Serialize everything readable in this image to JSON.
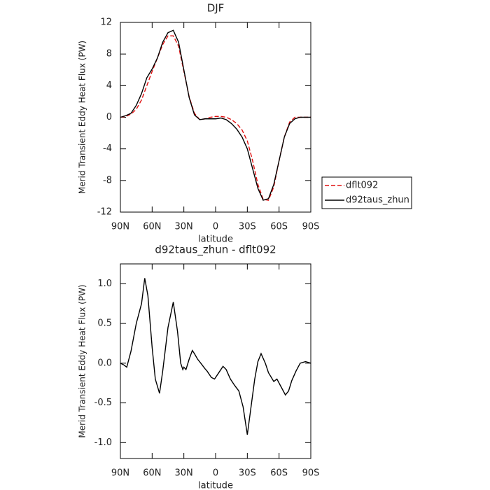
{
  "chart_data": [
    {
      "type": "line",
      "title": "DJF",
      "xlabel": "latitude",
      "ylabel": "Merid Transient Eddy Heat Flux (PW)",
      "xlim": [
        90,
        -90
      ],
      "xticks": [
        {
          "value": 90,
          "label": "90N"
        },
        {
          "value": 60,
          "label": "60N"
        },
        {
          "value": 30,
          "label": "30N"
        },
        0,
        {
          "value": -30,
          "label": "30S"
        },
        {
          "value": -60,
          "label": "60S"
        },
        {
          "value": -90,
          "label": "90S"
        }
      ],
      "ylim": [
        -12,
        12
      ],
      "yticks": [
        12,
        8,
        4,
        0,
        -4,
        -8,
        -12
      ],
      "legend": "right",
      "x": [
        90,
        85,
        80,
        75,
        70,
        65,
        60,
        55,
        50,
        45,
        40,
        35,
        30,
        25,
        20,
        15,
        10,
        5,
        0,
        -5,
        -10,
        -15,
        -20,
        -25,
        -30,
        -35,
        -40,
        -45,
        -50,
        -55,
        -60,
        -65,
        -70,
        -75,
        -80,
        -85,
        -90
      ],
      "series": [
        {
          "name": "dflt092",
          "color": "#e01010",
          "dashed": true,
          "values": [
            0,
            0.1,
            0.4,
            1.0,
            2.2,
            4,
            5.8,
            7.5,
            9.2,
            10.3,
            10.3,
            9.0,
            5.8,
            2.6,
            0.5,
            -0.3,
            -0.2,
            0,
            0.1,
            0.1,
            0,
            -0.3,
            -0.8,
            -1.6,
            -3,
            -5.5,
            -8.5,
            -10.4,
            -10.5,
            -8.8,
            -5.5,
            -2.5,
            -0.6,
            0,
            0,
            0,
            0
          ]
        },
        {
          "name": "d92taus_zhun",
          "color": "#000000",
          "dashed": false,
          "values": [
            0,
            0.2,
            0.5,
            1.5,
            3,
            5,
            6.1,
            7.5,
            9.5,
            10.7,
            11,
            9.5,
            6,
            2.5,
            0.3,
            -0.3,
            -0.2,
            -0.2,
            -0.2,
            -0.1,
            -0.3,
            -0.8,
            -1.5,
            -2.5,
            -4,
            -6.5,
            -9,
            -10.5,
            -10.3,
            -8.5,
            -5.5,
            -2.5,
            -0.8,
            -0.2,
            0,
            0,
            0
          ]
        }
      ]
    },
    {
      "type": "line",
      "title": "d92taus_zhun - dflt092",
      "xlabel": "latitude",
      "ylabel": "Merid Transient Eddy Heat Flux (PW)",
      "xlim": [
        90,
        -90
      ],
      "xticks": [
        {
          "value": 90,
          "label": "90N"
        },
        {
          "value": 60,
          "label": "60N"
        },
        {
          "value": 30,
          "label": "30N"
        },
        0,
        {
          "value": -30,
          "label": "30S"
        },
        {
          "value": -60,
          "label": "60S"
        },
        {
          "value": -90,
          "label": "90S"
        }
      ],
      "ylim": [
        -1.2,
        1.25
      ],
      "yticks": [
        {
          "value": 1,
          "label": "1.0"
        },
        0.5,
        {
          "value": 0,
          "label": "0.0"
        },
        -0.5,
        {
          "value": -1,
          "label": "-1.0"
        }
      ],
      "x": [
        90,
        87,
        84,
        80,
        75,
        70,
        67,
        64,
        60,
        57,
        53,
        50,
        45,
        40,
        36,
        33,
        31,
        30,
        28,
        25,
        22,
        20,
        17,
        14,
        10,
        8,
        4,
        1,
        -3,
        -7,
        -10,
        -14,
        -18,
        -22,
        -26,
        -30,
        -33,
        -37,
        -40,
        -43,
        -47,
        -50,
        -55,
        -58,
        -62,
        -66,
        -69,
        -72,
        -76,
        -80,
        -85,
        -90
      ],
      "series": [
        {
          "color": "#000000",
          "dashed": false,
          "values": [
            0,
            -0.02,
            -0.05,
            0.15,
            0.5,
            0.75,
            1.07,
            0.85,
            0.2,
            -0.2,
            -0.38,
            -0.1,
            0.45,
            0.77,
            0.4,
            0,
            -0.08,
            -0.05,
            -0.08,
            0.05,
            0.16,
            0.12,
            0.05,
            0,
            -0.07,
            -0.1,
            -0.18,
            -0.2,
            -0.12,
            -0.04,
            -0.08,
            -0.2,
            -0.28,
            -0.35,
            -0.55,
            -0.9,
            -0.6,
            -0.2,
            0.02,
            0.12,
            0,
            -0.12,
            -0.23,
            -0.2,
            -0.3,
            -0.4,
            -0.35,
            -0.22,
            -0.1,
            0,
            0.02,
            0
          ]
        }
      ]
    }
  ]
}
